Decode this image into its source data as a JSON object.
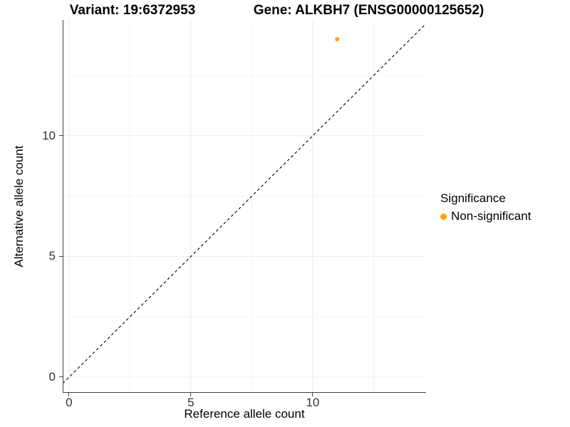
{
  "chart_data": {
    "type": "scatter",
    "titles": {
      "left": "Variant: 19:6372953",
      "right": "Gene: ALKBH7 (ENSG00000125652)"
    },
    "xlabel": "Reference allele count",
    "ylabel": "Alternative allele count",
    "xlim": [
      -0.26,
      14.65
    ],
    "ylim": [
      -0.65,
      14.8
    ],
    "xticks": [
      0,
      5,
      10
    ],
    "yticks": [
      0,
      5,
      10
    ],
    "xminor": [
      2.5,
      7.5,
      12.5
    ],
    "yminor": [
      2.5,
      7.5,
      12.5
    ],
    "grid": "major+minor, light gray on white",
    "points": [
      {
        "x": 11,
        "y": 14,
        "series": "Non-significant",
        "color": "#FFA500"
      }
    ],
    "reference_line": {
      "slope": 1,
      "intercept": 0,
      "style": "dashed",
      "color": "#000000"
    },
    "legend": {
      "title": "Significance",
      "position": "right",
      "entries": [
        {
          "label": "Non-significant",
          "color": "#FFA500"
        }
      ]
    }
  },
  "colors": {
    "background": "#FFFFFF",
    "axis_line": "#404040",
    "grid_major": "#EBEBEB",
    "grid_minor": "#F4F4F4",
    "tick_text": "#333333",
    "point": "#FFA500"
  }
}
